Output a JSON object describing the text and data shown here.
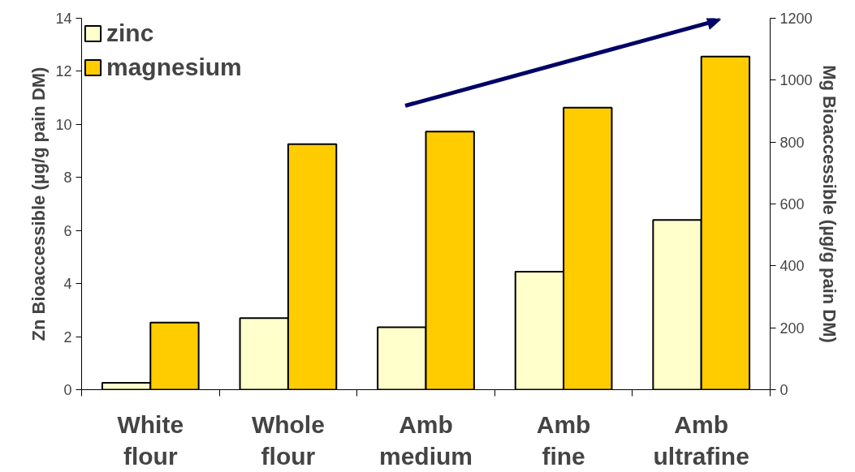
{
  "chart_data": {
    "type": "bar",
    "categories": [
      "White flour",
      "Whole flour",
      "Amb medium",
      "Amb fine",
      "Amb ultrafine"
    ],
    "series": [
      {
        "name": "zinc",
        "color": "#ffffcc",
        "values": [
          0.26,
          2.7,
          2.35,
          4.45,
          6.4
        ]
      },
      {
        "name": "magnesium",
        "color": "#ffcc00",
        "axis": "y2",
        "values": [
          217,
          793,
          834,
          911,
          1076
        ]
      }
    ],
    "ylabel": "Zn Bioaccessible (µg/g pain DM)",
    "y2label": "Mg Bioaccessible (µg/g pain DM)",
    "ylim": [
      0,
      14
    ],
    "yticks": [
      0,
      2,
      4,
      6,
      8,
      10,
      12,
      14
    ],
    "y2lim": [
      0,
      1200
    ],
    "y2ticks": [
      0,
      200,
      400,
      600,
      800,
      1000,
      1200
    ],
    "grid": false,
    "legend": "top left"
  }
}
